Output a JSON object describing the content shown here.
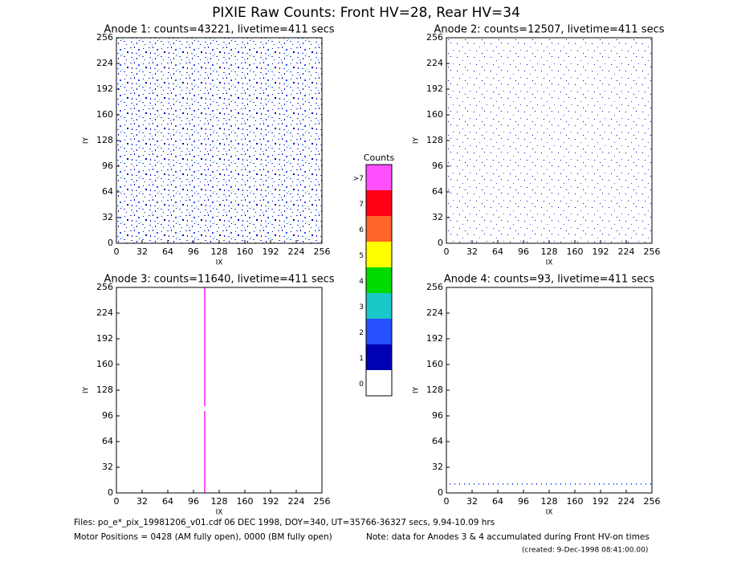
{
  "title": "PIXIE Raw Counts:  Front HV=28, Rear HV=34",
  "chart_data": [
    {
      "type": "heatmap",
      "title": "Anode 1: counts=43221, livetime=411 secs",
      "xlabel": "IX",
      "ylabel": "IY",
      "xlim": [
        0,
        256
      ],
      "ylim": [
        0,
        256
      ],
      "xticks": [
        0,
        32,
        64,
        96,
        128,
        160,
        192,
        224,
        256
      ],
      "yticks": [
        0,
        32,
        64,
        96,
        128,
        160,
        192,
        224,
        256
      ]
    },
    {
      "type": "heatmap",
      "title": "Anode 2: counts=12507, livetime=411 secs",
      "xlabel": "IX",
      "ylabel": "IY",
      "xlim": [
        0,
        256
      ],
      "ylim": [
        0,
        256
      ],
      "xticks": [
        0,
        32,
        64,
        96,
        128,
        160,
        192,
        224,
        256
      ],
      "yticks": [
        0,
        32,
        64,
        96,
        128,
        160,
        192,
        224,
        256
      ]
    },
    {
      "type": "heatmap",
      "title": "Anode 3: counts=11640, livetime=411 secs",
      "xlabel": "IX",
      "ylabel": "IY",
      "xlim": [
        0,
        256
      ],
      "ylim": [
        0,
        256
      ],
      "xticks": [
        0,
        32,
        64,
        96,
        128,
        160,
        192,
        224,
        256
      ],
      "yticks": [
        0,
        32,
        64,
        96,
        128,
        160,
        192,
        224,
        256
      ]
    },
    {
      "type": "heatmap",
      "title": "Anode 4: counts=93, livetime=411 secs",
      "xlabel": "IX",
      "ylabel": "IY",
      "xlim": [
        0,
        256
      ],
      "ylim": [
        0,
        256
      ],
      "xticks": [
        0,
        32,
        64,
        96,
        128,
        160,
        192,
        224,
        256
      ],
      "yticks": [
        0,
        32,
        64,
        96,
        128,
        160,
        192,
        224,
        256
      ]
    }
  ],
  "colorbar": {
    "title": "Counts",
    "labels": [
      "0",
      "1",
      "2",
      "3",
      "4",
      "5",
      "6",
      "7",
      ">7"
    ],
    "colors": [
      "#ffffff",
      "#0000b4",
      "#2850ff",
      "#19c8c8",
      "#00dc00",
      "#ffff00",
      "#ff6428",
      "#ff0014",
      "#ff50ff"
    ]
  },
  "footer": {
    "files": "Files: po_e*_pix_19981206_v01.cdf   06 DEC 1998, DOY=340, UT=35766-36327 secs,  9.94-10.09 hrs",
    "motor": "Motor Positions = 0428 (AM fully open), 0000 (BM fully open)",
    "note": "Note: data for Anodes 3 & 4 accumulated during Front HV-on times",
    "created": "(created:  9-Dec-1998 08:41:00.00)"
  }
}
